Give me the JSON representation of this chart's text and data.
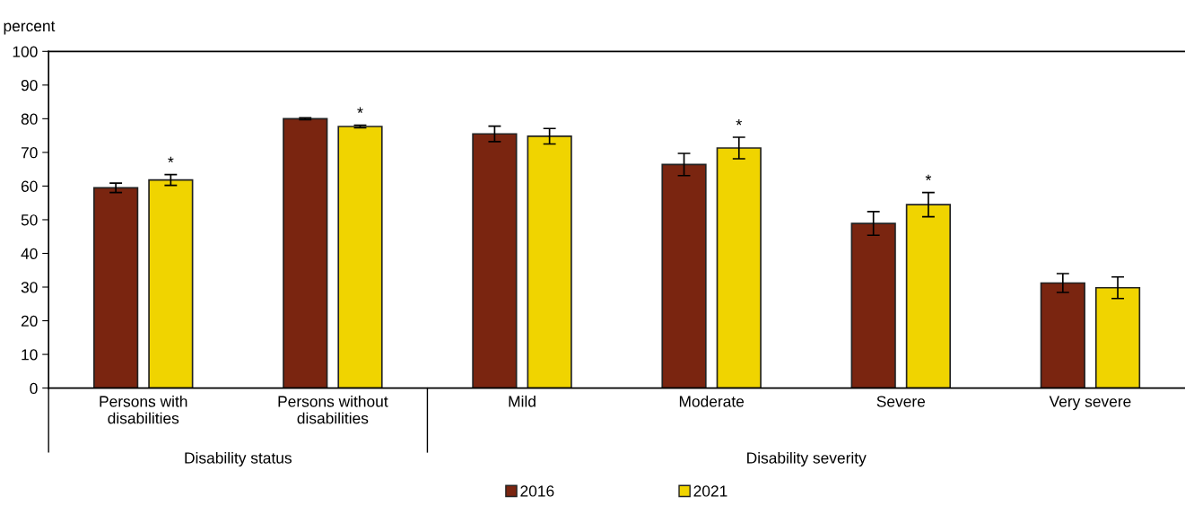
{
  "chart_data": {
    "type": "bar",
    "ylabel": "percent",
    "categories": [
      "Persons with\ndisabilities",
      "Persons without\ndisabilities",
      "Mild",
      "Moderate",
      "Severe",
      "Very severe"
    ],
    "series": [
      {
        "name": "2016",
        "color": "#7a2510",
        "values": [
          59.5,
          80.0,
          75.5,
          66.4,
          48.9,
          31.2
        ],
        "errors": [
          1.4,
          0.3,
          2.3,
          3.3,
          3.5,
          2.8
        ]
      },
      {
        "name": "2021",
        "color": "#f0d400",
        "values": [
          61.8,
          77.7,
          74.8,
          71.3,
          54.5,
          29.8
        ],
        "errors": [
          1.6,
          0.4,
          2.3,
          3.2,
          3.6,
          3.2
        ]
      }
    ],
    "ylim": [
      0,
      100
    ],
    "yticks": [
      0,
      10,
      20,
      30,
      40,
      50,
      60,
      70,
      80,
      90,
      100
    ],
    "grid": false,
    "legend": "bottom",
    "annotations": [
      "*",
      "*",
      "*",
      "*",
      "Disability status",
      "Disability severity"
    ]
  }
}
